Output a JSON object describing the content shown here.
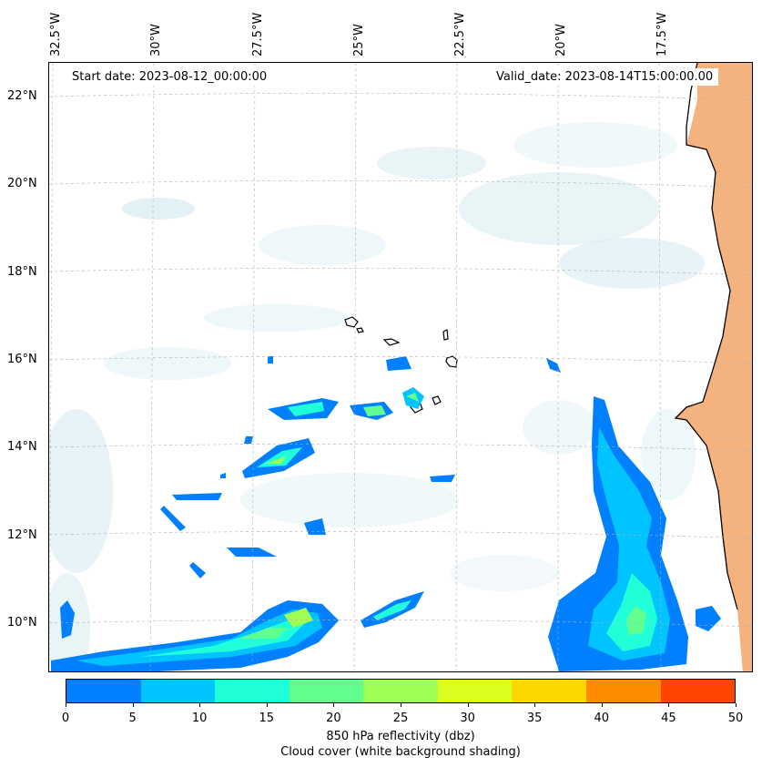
{
  "start_date": "Start date: 2023-08-12_00:00:00",
  "valid_date": "Valid_date: 2023-08-14T15:00:00.00",
  "longitude_labels": [
    "32.5°W",
    "30°W",
    "27.5°W",
    "25°W",
    "22.5°W",
    "20°W",
    "17.5°W"
  ],
  "latitude_labels": [
    "22°N",
    "20°N",
    "18°N",
    "16°N",
    "14°N",
    "12°N",
    "10°N"
  ],
  "colorbar": {
    "ticks": [
      "0",
      "5",
      "10",
      "15",
      "20",
      "25",
      "30",
      "35",
      "40",
      "45",
      "50"
    ],
    "colors": [
      "#0080ff",
      "#00c4ff",
      "#20ffd8",
      "#60ff90",
      "#a0ff50",
      "#dcff1e",
      "#ffd700",
      "#ff8c00",
      "#ff4500"
    ],
    "label": "850 hPa reflectivity (dbz)",
    "sublabel": "Cloud cover (white background shading)"
  },
  "colors": {
    "land": "#f2a468",
    "cloud": "#cfe7ee",
    "coast": "#000000"
  }
}
